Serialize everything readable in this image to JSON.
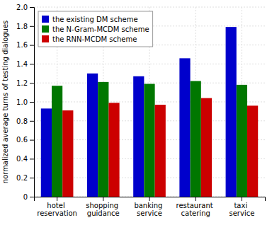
{
  "chart_data": {
    "type": "bar",
    "y_label": "normalized average turns of testing dialogues",
    "categories": [
      "hotel reservation",
      "shopping guidance",
      "banking service",
      "restaurant catering",
      "taxi service"
    ],
    "series": [
      {
        "name": "the existing DM scheme",
        "color": "#0000cc",
        "values": [
          0.93,
          1.3,
          1.27,
          1.46,
          1.79
        ]
      },
      {
        "name": "the N-Gram-MCDM scheme",
        "color": "#007700",
        "values": [
          1.17,
          1.21,
          1.19,
          1.22,
          1.18
        ]
      },
      {
        "name": "the RNN-MCDM scheme",
        "color": "#cc0000",
        "values": [
          0.91,
          0.99,
          0.97,
          1.04,
          0.96
        ]
      }
    ],
    "ylim": [
      0,
      2.0
    ],
    "yticks": [
      0,
      0.2,
      0.4,
      0.6,
      0.8,
      {
        "value": 1.0,
        "label": "1.0"
      },
      1.2,
      1.4,
      1.6,
      1.8,
      {
        "value": 2.0,
        "label": "2.0"
      }
    ],
    "grid": true,
    "legend": "upper left"
  }
}
